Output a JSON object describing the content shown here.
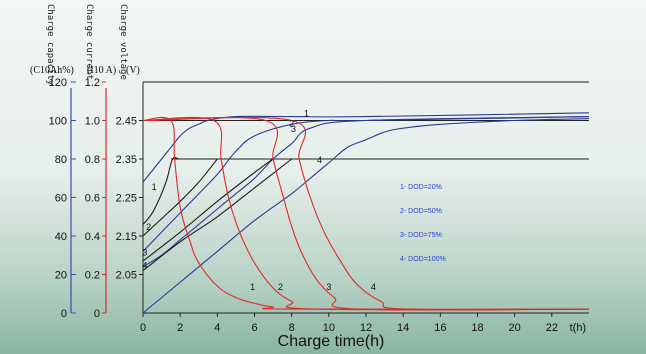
{
  "chart_data": {
    "type": "line",
    "xlabel": "Charge time(h)",
    "x_unit": "t(h)",
    "xlim": [
      0,
      24
    ],
    "x_ticks": [
      0,
      2,
      4,
      6,
      8,
      10,
      12,
      14,
      16,
      18,
      20,
      22
    ],
    "axes": [
      {
        "title": "Charge capacity",
        "unit": "(C10Ah%)",
        "ticks": [
          "120",
          "100",
          "80",
          "60",
          "40",
          "20",
          "0"
        ],
        "range": [
          0,
          120
        ],
        "color": "#3b4bb0"
      },
      {
        "title": "Charge current",
        "unit": "(I10 A)",
        "ticks": [
          "1.2",
          "1.0",
          "0.8",
          "0.6",
          "0.4",
          "0.2",
          "0"
        ],
        "range": [
          0,
          1.2
        ],
        "color": "#d23030"
      },
      {
        "title": "Charge voltage",
        "unit": "(V)",
        "ticks": [
          "2.45",
          "2.35",
          "2.25",
          "2.15",
          "2.05"
        ],
        "range": [
          1.95,
          2.55
        ]
      }
    ],
    "reference_lines": [
      1.2,
      1.0,
      0.8
    ],
    "legend": [
      "1- DOD=20%",
      "2- DOD=50%",
      "3- DOD=75%",
      "4- DOD=100%"
    ],
    "legend_position": "right",
    "series": [
      {
        "name": "1",
        "color_key": "voltage",
        "unit": "V",
        "x": [
          0,
          0.5,
          1,
          1.5,
          2,
          2.5,
          3,
          3.5,
          5,
          8,
          12,
          24
        ],
        "y": [
          2.29,
          2.32,
          2.35,
          2.38,
          2.41,
          2.43,
          2.44,
          2.45,
          2.46,
          2.46,
          2.46,
          2.47
        ]
      },
      {
        "name": "2",
        "color_key": "voltage",
        "unit": "V",
        "x": [
          0,
          1,
          2,
          3,
          4,
          5,
          6,
          8,
          10,
          12,
          24
        ],
        "y": [
          2.11,
          2.16,
          2.21,
          2.26,
          2.31,
          2.37,
          2.41,
          2.44,
          2.45,
          2.45,
          2.46
        ]
      },
      {
        "name": "3",
        "color_key": "voltage",
        "unit": "V",
        "x": [
          0,
          1,
          2,
          3,
          4,
          5,
          6,
          7,
          8,
          9,
          12,
          24
        ],
        "y": [
          2.07,
          2.1,
          2.14,
          2.18,
          2.22,
          2.26,
          2.3,
          2.35,
          2.39,
          2.43,
          2.45,
          2.46
        ]
      },
      {
        "name": "4",
        "color_key": "voltage",
        "unit": "V",
        "x": [
          0,
          2,
          4,
          6,
          8,
          9,
          10,
          11,
          12,
          13,
          14,
          16,
          20,
          24
        ],
        "y": [
          1.95,
          2.03,
          2.11,
          2.19,
          2.26,
          2.3,
          2.34,
          2.38,
          2.4,
          2.42,
          2.43,
          2.44,
          2.45,
          2.455
        ]
      },
      {
        "name": "1",
        "color_key": "capacity",
        "unit": "C10Ah%",
        "x": [
          0,
          0.5,
          1,
          1.3,
          1.6,
          2,
          3,
          3.5,
          4
        ],
        "y": [
          46,
          52,
          62,
          70,
          80,
          80,
          80,
          80,
          80
        ]
      },
      {
        "name": "2",
        "color_key": "capacity",
        "unit": "C10Ah%",
        "x": [
          0,
          1,
          2,
          3,
          4
        ],
        "y": [
          40,
          49,
          58,
          68,
          80
        ]
      },
      {
        "name": "3",
        "color_key": "capacity",
        "unit": "C10Ah%",
        "x": [
          0,
          2,
          4,
          6,
          7
        ],
        "y": [
          27,
          42,
          58,
          73,
          80
        ]
      },
      {
        "name": "4",
        "color_key": "capacity",
        "unit": "C10Ah%",
        "x": [
          0,
          2,
          4,
          6,
          8
        ],
        "y": [
          22,
          37,
          50,
          65,
          80
        ]
      },
      {
        "name": "1",
        "color_key": "current",
        "unit": "I10A",
        "x": [
          0,
          1.5,
          1.7,
          2,
          2.5,
          3,
          4,
          5,
          6,
          7,
          8,
          24
        ],
        "y": [
          1.0,
          1.0,
          0.8,
          0.55,
          0.38,
          0.26,
          0.14,
          0.08,
          0.05,
          0.03,
          0.02,
          0.02
        ]
      },
      {
        "name": "2",
        "color_key": "current",
        "unit": "I10A",
        "x": [
          0,
          3.8,
          4.2,
          4.6,
          5.2,
          6,
          7,
          8,
          9.3,
          24
        ],
        "y": [
          1.0,
          1.0,
          0.8,
          0.6,
          0.42,
          0.26,
          0.13,
          0.06,
          0.02,
          0.02
        ]
      },
      {
        "name": "3",
        "color_key": "current",
        "unit": "I10A",
        "x": [
          0,
          6.6,
          7,
          7.5,
          8,
          8.5,
          9.3,
          10.3,
          11.6,
          24
        ],
        "y": [
          1.0,
          1.0,
          0.8,
          0.62,
          0.45,
          0.32,
          0.18,
          0.08,
          0.02,
          0.02
        ]
      },
      {
        "name": "4",
        "color_key": "current",
        "unit": "I10A",
        "x": [
          0,
          8,
          8.4,
          9,
          9.7,
          10.5,
          11.5,
          12.8,
          14.2,
          24
        ],
        "y": [
          1.0,
          1.0,
          0.8,
          0.6,
          0.43,
          0.29,
          0.15,
          0.06,
          0.02,
          0.02
        ]
      }
    ],
    "series_labels": [
      {
        "text": "1",
        "near_x": 8.8,
        "near_y": 2.46,
        "axis": "voltage"
      },
      {
        "text": "2",
        "near_x": 8.0,
        "near_y": 2.435,
        "axis": "voltage"
      },
      {
        "text": "3",
        "near_x": 8.1,
        "near_y": 2.42,
        "axis": "voltage"
      },
      {
        "text": "4",
        "near_x": 9.5,
        "near_y": 2.34,
        "axis": "voltage"
      },
      {
        "text": "1",
        "near_x": 0.6,
        "near_y": 64,
        "axis": "capacity"
      },
      {
        "text": "2",
        "near_x": 0.3,
        "near_y": 43,
        "axis": "capacity"
      },
      {
        "text": "3",
        "near_x": 0.1,
        "near_y": 30,
        "axis": "capacity"
      },
      {
        "text": "4",
        "near_x": 0.1,
        "near_y": 23,
        "axis": "capacity"
      },
      {
        "text": "1",
        "near_x": 5.9,
        "near_y": 0.12,
        "axis": "current"
      },
      {
        "text": "2",
        "near_x": 7.4,
        "near_y": 0.12,
        "axis": "current"
      },
      {
        "text": "3",
        "near_x": 10.0,
        "near_y": 0.12,
        "axis": "current"
      },
      {
        "text": "4",
        "near_x": 12.4,
        "near_y": 0.12,
        "axis": "current"
      }
    ],
    "colors": {
      "voltage": "#2a3a96",
      "capacity": "#1d1d1d",
      "current": "#e12828",
      "axis_capacity": "#3b4bb0",
      "axis_current": "#d23030",
      "grid": "#222222",
      "legend": "#2a3fd0"
    }
  }
}
